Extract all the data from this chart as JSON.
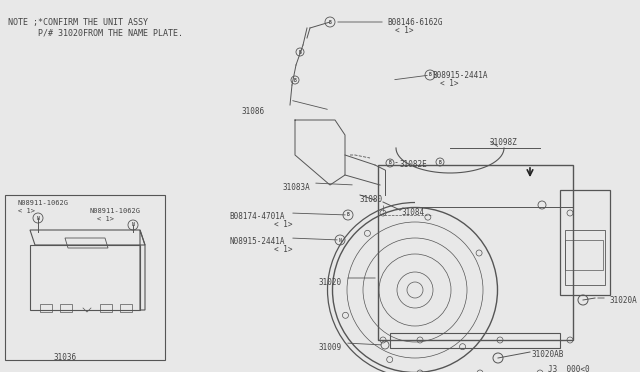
{
  "bg_color": "#e8e8e8",
  "line_color": "#555555",
  "text_color": "#444444",
  "note_line1": "NOTE ;*CONFIRM THE UNIT ASSY",
  "note_line2": "      P/# 31020FROM THE NAME PLATE.",
  "diagram_ref": "J3  000<0",
  "fig_w": 6.4,
  "fig_h": 3.72,
  "dpi": 100
}
